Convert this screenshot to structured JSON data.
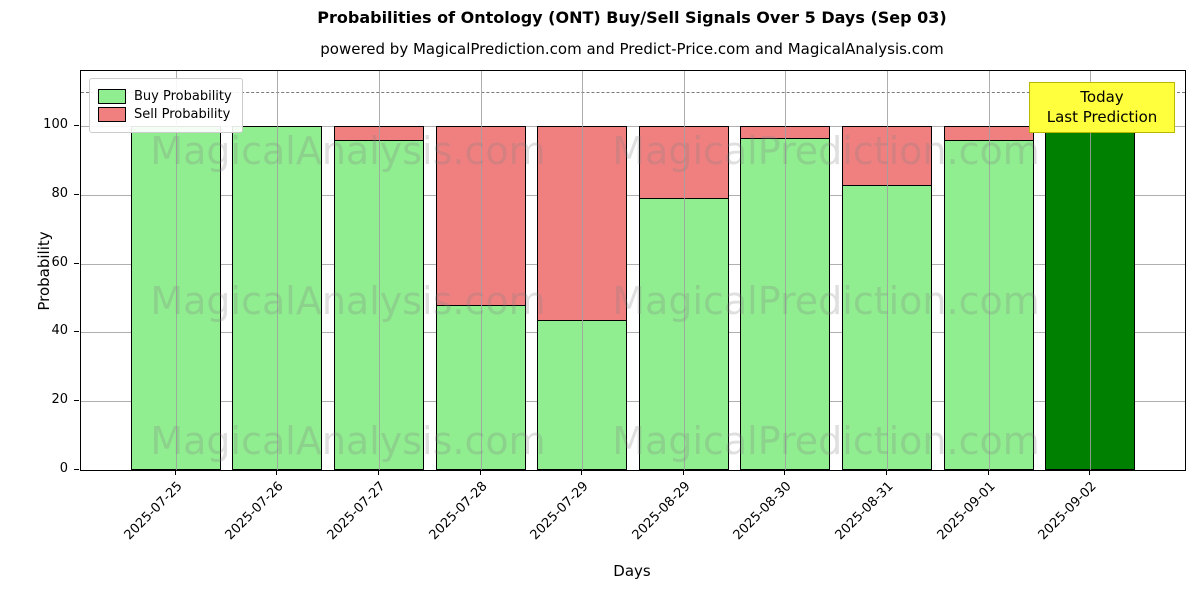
{
  "title": "Probabilities of Ontology (ONT) Buy/Sell Signals Over 5 Days (Sep 03)",
  "subtitle": "powered by MagicalPrediction.com and Predict-Price.com and MagicalAnalysis.com",
  "axes": {
    "ylabel": "Probability",
    "xlabel": "Days",
    "yticks": [
      0,
      20,
      40,
      60,
      80,
      100
    ],
    "ylim": [
      0,
      116
    ],
    "dashed_line_y": 110,
    "grid": "on"
  },
  "legend": {
    "position": "upper-left",
    "items": [
      {
        "label": "Buy Probability",
        "color": "#90EE90"
      },
      {
        "label": "Sell Probability",
        "color": "#F08080"
      }
    ]
  },
  "annotation": {
    "line1": "Today",
    "line2": "Last Prediction",
    "bg_color": "#ffff3d",
    "border_color": "#b8b800"
  },
  "watermarks": {
    "left_text": "MagicalAnalysis.com",
    "right_text": "MagicalPrediction.com"
  },
  "colors": {
    "buy": "#90EE90",
    "sell": "#F08080",
    "today_bar": "#008000",
    "bar_edge": "#000000"
  },
  "chart_data": {
    "type": "bar",
    "stacked": true,
    "categories": [
      "2025-07-25",
      "2025-07-26",
      "2025-07-27",
      "2025-07-28",
      "2025-07-29",
      "2025-08-29",
      "2025-08-30",
      "2025-08-31",
      "2025-09-01",
      "2025-09-02"
    ],
    "series": [
      {
        "name": "Buy Probability",
        "color": "#90EE90",
        "values": [
          100,
          100,
          96,
          48,
          43.5,
          79,
          96.5,
          83,
          96,
          100
        ]
      },
      {
        "name": "Sell Probability",
        "color": "#F08080",
        "values": [
          0,
          0,
          4,
          52,
          56.5,
          21,
          3.5,
          17,
          4,
          0
        ]
      }
    ],
    "today_bar": {
      "index": 9,
      "color": "#008000",
      "value": 100
    },
    "title": "Probabilities of Ontology (ONT) Buy/Sell Signals Over 5 Days (Sep 03)",
    "xlabel": "Days",
    "ylabel": "Probability",
    "ylim": [
      0,
      116
    ],
    "legend_position": "upper left"
  }
}
